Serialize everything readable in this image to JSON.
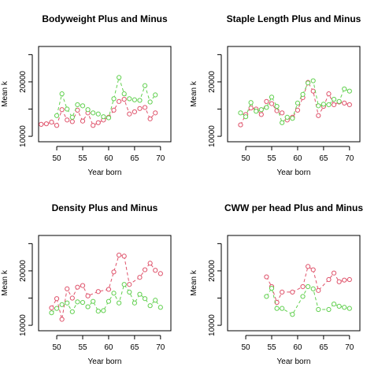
{
  "chart_data": [
    {
      "type": "line",
      "title": "Bodyweight Plus and Minus",
      "xlabel": "Year born",
      "ylabel": "Mean k",
      "xlim": [
        46.5,
        72
      ],
      "ylim": [
        9000,
        26500
      ],
      "xticks": [
        50,
        55,
        60,
        65,
        70
      ],
      "yticks": [
        10000,
        20000
      ],
      "yticks_minor": [
        15000,
        25000
      ],
      "grid": false,
      "legend": "none",
      "series": [
        {
          "color": "#DF536B",
          "x": [
            47,
            48,
            49,
            50,
            51,
            52,
            53,
            54,
            55,
            56,
            57,
            58,
            59,
            60,
            61,
            62,
            63,
            64,
            65,
            66,
            67,
            68,
            69
          ],
          "y": [
            12200,
            12300,
            12600,
            12000,
            14900,
            13000,
            12700,
            14800,
            12800,
            14300,
            12000,
            12500,
            13000,
            13500,
            14800,
            16400,
            16800,
            14100,
            14500,
            15100,
            15300,
            13200,
            14300
          ]
        },
        {
          "color": "#61D04F",
          "x": [
            50,
            51,
            52,
            53,
            54,
            55,
            56,
            57,
            58,
            59,
            60,
            61,
            62,
            63,
            64,
            65,
            66,
            67,
            68,
            69
          ],
          "y": [
            13800,
            17800,
            15000,
            13500,
            15800,
            15600,
            14900,
            14300,
            14100,
            13600,
            13400,
            16900,
            20800,
            17800,
            16900,
            16700,
            16600,
            19300,
            16300,
            17600
          ]
        }
      ]
    },
    {
      "type": "line",
      "title": "Staple Length Plus and Minus",
      "xlabel": "Year born",
      "ylabel": "Mean k",
      "xlim": [
        46.5,
        72
      ],
      "ylim": [
        9000,
        26500
      ],
      "xticks": [
        50,
        55,
        60,
        65,
        70
      ],
      "yticks": [
        10000,
        20000
      ],
      "yticks_minor": [
        15000,
        25000
      ],
      "grid": false,
      "legend": "none",
      "series": [
        {
          "color": "#DF536B",
          "x": [
            49,
            50,
            51,
            52,
            53,
            54,
            55,
            56,
            57,
            58,
            59,
            60,
            61,
            62,
            63,
            64,
            65,
            66,
            67,
            68,
            69,
            70
          ],
          "y": [
            12100,
            14000,
            15200,
            15000,
            14000,
            16400,
            16000,
            14700,
            14300,
            13000,
            13500,
            14800,
            17100,
            19900,
            18300,
            13800,
            15500,
            17800,
            15800,
            16300,
            16100,
            15800
          ]
        },
        {
          "color": "#61D04F",
          "x": [
            49,
            50,
            51,
            52,
            53,
            54,
            55,
            56,
            57,
            58,
            59,
            60,
            61,
            62,
            63,
            64,
            65,
            66,
            67,
            68,
            69,
            70
          ],
          "y": [
            14300,
            13600,
            16200,
            14600,
            14900,
            15300,
            17200,
            15500,
            12500,
            13500,
            13300,
            16100,
            17700,
            19800,
            20200,
            15600,
            15900,
            15800,
            16800,
            16400,
            18700,
            18300
          ]
        }
      ]
    },
    {
      "type": "line",
      "title": "Density Plus and Minus",
      "xlabel": "Year born",
      "ylabel": "Mean k",
      "xlim": [
        46.5,
        72
      ],
      "ylim": [
        9000,
        26500
      ],
      "xticks": [
        50,
        55,
        60,
        65,
        70
      ],
      "yticks": [
        10000,
        20000
      ],
      "yticks_minor": [
        15000,
        25000
      ],
      "grid": false,
      "legend": "none",
      "series": [
        {
          "color": "#DF536B",
          "x": [
            49,
            50,
            51,
            52,
            53,
            54,
            55,
            56,
            58,
            60,
            61,
            62,
            63,
            64,
            66,
            67,
            68,
            69,
            70
          ],
          "y": [
            13200,
            14900,
            11100,
            16700,
            15000,
            17000,
            17300,
            15400,
            16200,
            16600,
            19800,
            22900,
            22700,
            17500,
            18800,
            20200,
            21400,
            20100,
            19500
          ]
        },
        {
          "color": "#61D04F",
          "x": [
            49,
            50,
            51,
            52,
            53,
            54,
            55,
            56,
            57,
            58,
            59,
            60,
            61,
            62,
            63,
            64,
            65,
            66,
            67,
            68,
            69,
            70
          ],
          "y": [
            12300,
            13100,
            13800,
            14100,
            12500,
            14300,
            14200,
            13400,
            14400,
            12600,
            12700,
            14400,
            15900,
            14100,
            17500,
            16100,
            14100,
            15700,
            14900,
            13600,
            14600,
            13300
          ]
        }
      ]
    },
    {
      "type": "line",
      "title": "CWW per head Plus and Minus",
      "xlabel": "Year born",
      "ylabel": "Mean k",
      "xlim": [
        46.5,
        72
      ],
      "ylim": [
        9000,
        26500
      ],
      "xticks": [
        50,
        55,
        60,
        65,
        70
      ],
      "yticks": [
        10000,
        20000
      ],
      "yticks_minor": [
        15000,
        25000
      ],
      "grid": false,
      "legend": "none",
      "series": [
        {
          "color": "#DF536B",
          "x": [
            54,
            55,
            56,
            57,
            59,
            61,
            62,
            63,
            64,
            66,
            67,
            68,
            69,
            70
          ],
          "y": [
            18900,
            17100,
            14200,
            16100,
            16100,
            17100,
            20800,
            20200,
            16400,
            18400,
            19600,
            18000,
            18300,
            18400
          ]
        },
        {
          "color": "#61D04F",
          "x": [
            54,
            55,
            56,
            57,
            59,
            61,
            62,
            63,
            64,
            66,
            67,
            68,
            69,
            70
          ],
          "y": [
            15300,
            16800,
            13100,
            13100,
            12000,
            15300,
            17100,
            16700,
            12900,
            12900,
            13900,
            13500,
            13300,
            13100
          ]
        }
      ]
    }
  ]
}
